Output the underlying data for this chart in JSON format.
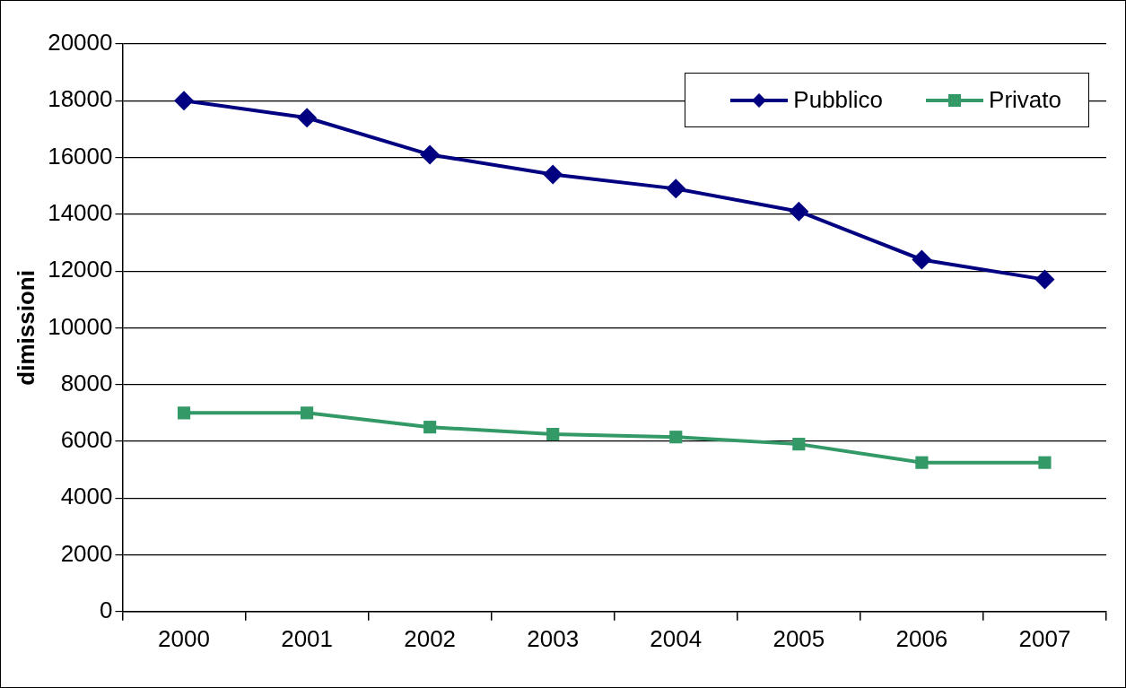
{
  "chart_data": {
    "type": "line",
    "ylabel": "dimissioni",
    "categories": [
      "2000",
      "2001",
      "2002",
      "2003",
      "2004",
      "2005",
      "2006",
      "2007"
    ],
    "series": [
      {
        "name": "Pubblico",
        "color": "#000080",
        "marker": "diamond",
        "values": [
          18000,
          17400,
          16100,
          15400,
          14900,
          14100,
          12400,
          11700
        ]
      },
      {
        "name": "Privato",
        "color": "#339966",
        "marker": "square",
        "values": [
          7000,
          7000,
          6500,
          6250,
          6150,
          5900,
          5250,
          5250
        ]
      }
    ],
    "ylim": [
      0,
      20000
    ],
    "yticks": [
      0,
      2000,
      4000,
      6000,
      8000,
      10000,
      12000,
      14000,
      16000,
      18000,
      20000
    ],
    "grid": "y",
    "legend": "top right",
    "line_style": "solid"
  }
}
